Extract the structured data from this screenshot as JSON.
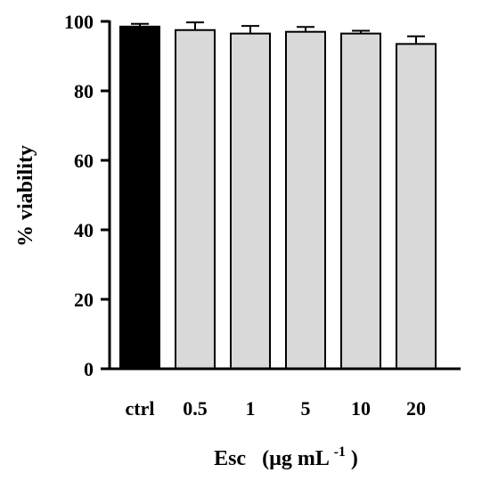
{
  "chart_data": {
    "type": "bar",
    "categories": [
      "ctrl",
      "0.5",
      "1",
      "5",
      "10",
      "20"
    ],
    "values": [
      98.5,
      97.5,
      96.5,
      97.0,
      96.5,
      93.5
    ],
    "errors": [
      0.8,
      2.2,
      2.2,
      1.4,
      0.8,
      2.2
    ],
    "bar_colors": [
      "#000000",
      "#d9d9d9",
      "#d9d9d9",
      "#d9d9d9",
      "#d9d9d9",
      "#d9d9d9"
    ],
    "edge_color": "#000000",
    "ylabel": "% viability",
    "xlabel": {
      "main": "Esc",
      "unit": "(µg mL",
      "superscript": "-1",
      "close": ")"
    },
    "ylim": [
      0,
      100
    ],
    "yticks": [
      0,
      20,
      40,
      60,
      80,
      100
    ],
    "grid": false,
    "legend": false
  }
}
